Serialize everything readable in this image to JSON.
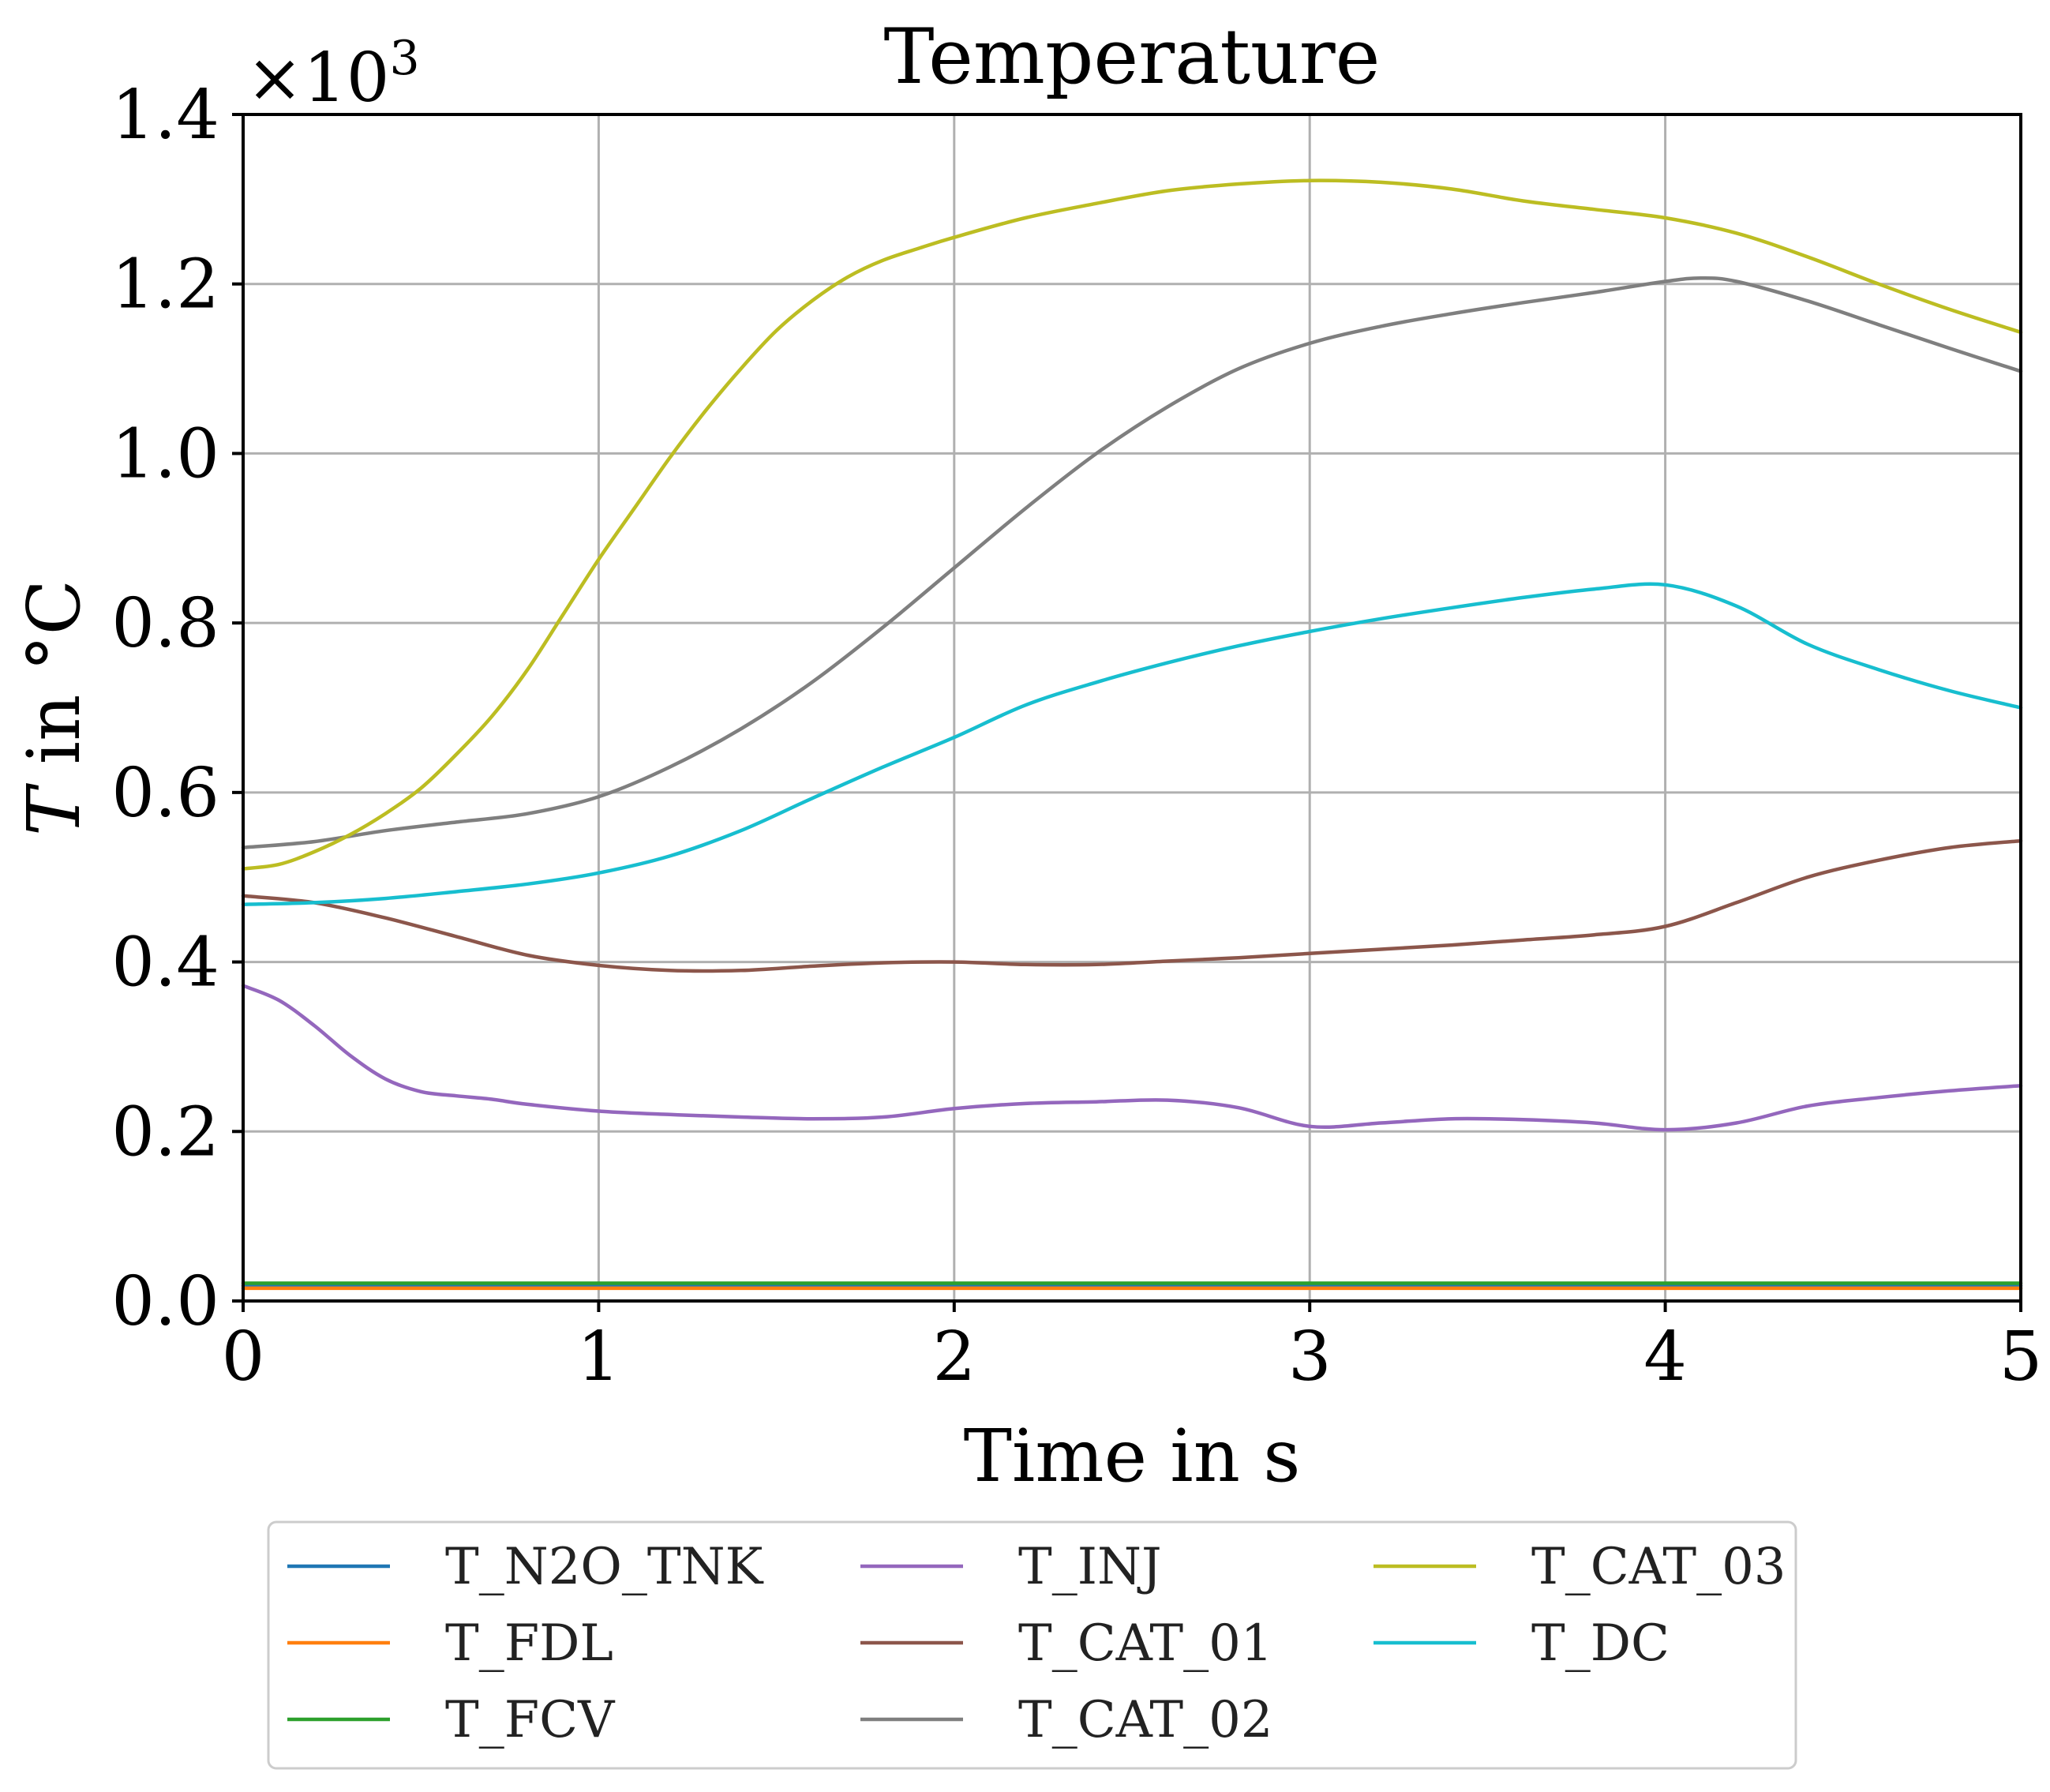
{
  "chart_data": {
    "type": "line",
    "title": "Temperature",
    "xlabel": "Time in s",
    "ylabel": "T in °C",
    "ylabel_italic": "T",
    "ylabel_rest": " in °C",
    "y_multiplier": "×10",
    "y_multiplier_exp": "3",
    "xlim": [
      0,
      5
    ],
    "ylim": [
      0,
      1.4
    ],
    "xticks": [
      0,
      1,
      2,
      3,
      4,
      5
    ],
    "xtick_labels": [
      "0",
      "1",
      "2",
      "3",
      "4",
      "5"
    ],
    "yticks": [
      0,
      0.2,
      0.4,
      0.6,
      0.8,
      1.0,
      1.2,
      1.4
    ],
    "ytick_labels": [
      "0.0",
      "0.2",
      "0.4",
      "0.6",
      "0.8",
      "1.0",
      "1.2",
      "1.4"
    ],
    "grid": true,
    "legend_position": "bottom-outside",
    "legend_columns": 3,
    "series": [
      {
        "name": "T_N2O_TNK",
        "color": "#1f77b4",
        "x": [
          0,
          5
        ],
        "y": [
          0.018,
          0.018
        ]
      },
      {
        "name": "T_FDL",
        "color": "#ff7f0e",
        "x": [
          0,
          5
        ],
        "y": [
          0.015,
          0.015
        ]
      },
      {
        "name": "T_FCV",
        "color": "#2ca02c",
        "x": [
          0,
          5
        ],
        "y": [
          0.021,
          0.021
        ]
      },
      {
        "name": "T_INJ",
        "color": "#9467bd",
        "x": [
          0,
          0.1,
          0.2,
          0.3,
          0.4,
          0.5,
          0.6,
          0.7,
          0.8,
          1.0,
          1.2,
          1.4,
          1.6,
          1.8,
          2.0,
          2.2,
          2.4,
          2.6,
          2.8,
          3.0,
          3.2,
          3.4,
          3.6,
          3.8,
          4.0,
          4.2,
          4.4,
          4.6,
          4.8,
          5.0
        ],
        "y": [
          0.372,
          0.355,
          0.325,
          0.29,
          0.262,
          0.247,
          0.242,
          0.238,
          0.232,
          0.224,
          0.22,
          0.217,
          0.215,
          0.217,
          0.227,
          0.233,
          0.235,
          0.237,
          0.228,
          0.206,
          0.21,
          0.215,
          0.214,
          0.21,
          0.202,
          0.21,
          0.23,
          0.24,
          0.248,
          0.254
        ]
      },
      {
        "name": "T_CAT_01",
        "color": "#8c564b",
        "x": [
          0,
          0.2,
          0.4,
          0.6,
          0.8,
          1.0,
          1.2,
          1.4,
          1.6,
          1.8,
          2.0,
          2.2,
          2.4,
          2.6,
          2.8,
          3.0,
          3.2,
          3.4,
          3.6,
          3.8,
          4.0,
          4.2,
          4.4,
          4.6,
          4.8,
          5.0
        ],
        "y": [
          0.478,
          0.47,
          0.452,
          0.43,
          0.408,
          0.396,
          0.39,
          0.39,
          0.395,
          0.399,
          0.4,
          0.397,
          0.397,
          0.401,
          0.405,
          0.41,
          0.415,
          0.42,
          0.426,
          0.432,
          0.442,
          0.47,
          0.5,
          0.52,
          0.535,
          0.543
        ]
      },
      {
        "name": "T_CAT_02",
        "color": "#7f7f7f",
        "x": [
          0,
          0.2,
          0.4,
          0.6,
          0.8,
          1.0,
          1.2,
          1.4,
          1.6,
          1.8,
          2.0,
          2.2,
          2.4,
          2.6,
          2.8,
          3.0,
          3.2,
          3.4,
          3.6,
          3.8,
          4.0,
          4.1,
          4.2,
          4.4,
          4.6,
          4.8,
          5.0
        ],
        "y": [
          0.535,
          0.542,
          0.555,
          0.565,
          0.575,
          0.595,
          0.63,
          0.675,
          0.73,
          0.795,
          0.865,
          0.935,
          1.0,
          1.055,
          1.1,
          1.13,
          1.15,
          1.165,
          1.178,
          1.19,
          1.203,
          1.207,
          1.203,
          1.18,
          1.152,
          1.124,
          1.097
        ]
      },
      {
        "name": "T_CAT_03",
        "color": "#bcbd22",
        "x": [
          0,
          0.1,
          0.2,
          0.3,
          0.4,
          0.5,
          0.6,
          0.7,
          0.8,
          0.9,
          1.0,
          1.1,
          1.2,
          1.3,
          1.4,
          1.5,
          1.6,
          1.7,
          1.8,
          1.9,
          2.0,
          2.2,
          2.4,
          2.6,
          2.8,
          3.0,
          3.2,
          3.4,
          3.6,
          3.8,
          4.0,
          4.2,
          4.4,
          4.6,
          4.8,
          5.0
        ],
        "y": [
          0.51,
          0.515,
          0.53,
          0.55,
          0.575,
          0.605,
          0.645,
          0.69,
          0.745,
          0.81,
          0.875,
          0.935,
          0.995,
          1.05,
          1.1,
          1.145,
          1.18,
          1.208,
          1.228,
          1.242,
          1.255,
          1.278,
          1.295,
          1.31,
          1.318,
          1.322,
          1.32,
          1.312,
          1.298,
          1.288,
          1.278,
          1.26,
          1.232,
          1.2,
          1.17,
          1.143
        ]
      },
      {
        "name": "T_DC",
        "color": "#17becf",
        "x": [
          0,
          0.2,
          0.4,
          0.6,
          0.8,
          1.0,
          1.2,
          1.4,
          1.6,
          1.8,
          2.0,
          2.2,
          2.4,
          2.6,
          2.8,
          3.0,
          3.2,
          3.4,
          3.6,
          3.8,
          4.0,
          4.2,
          4.4,
          4.6,
          4.8,
          5.0
        ],
        "y": [
          0.468,
          0.47,
          0.475,
          0.483,
          0.492,
          0.505,
          0.525,
          0.555,
          0.593,
          0.63,
          0.665,
          0.703,
          0.73,
          0.753,
          0.773,
          0.79,
          0.805,
          0.818,
          0.83,
          0.84,
          0.845,
          0.82,
          0.775,
          0.745,
          0.72,
          0.7
        ]
      }
    ]
  }
}
